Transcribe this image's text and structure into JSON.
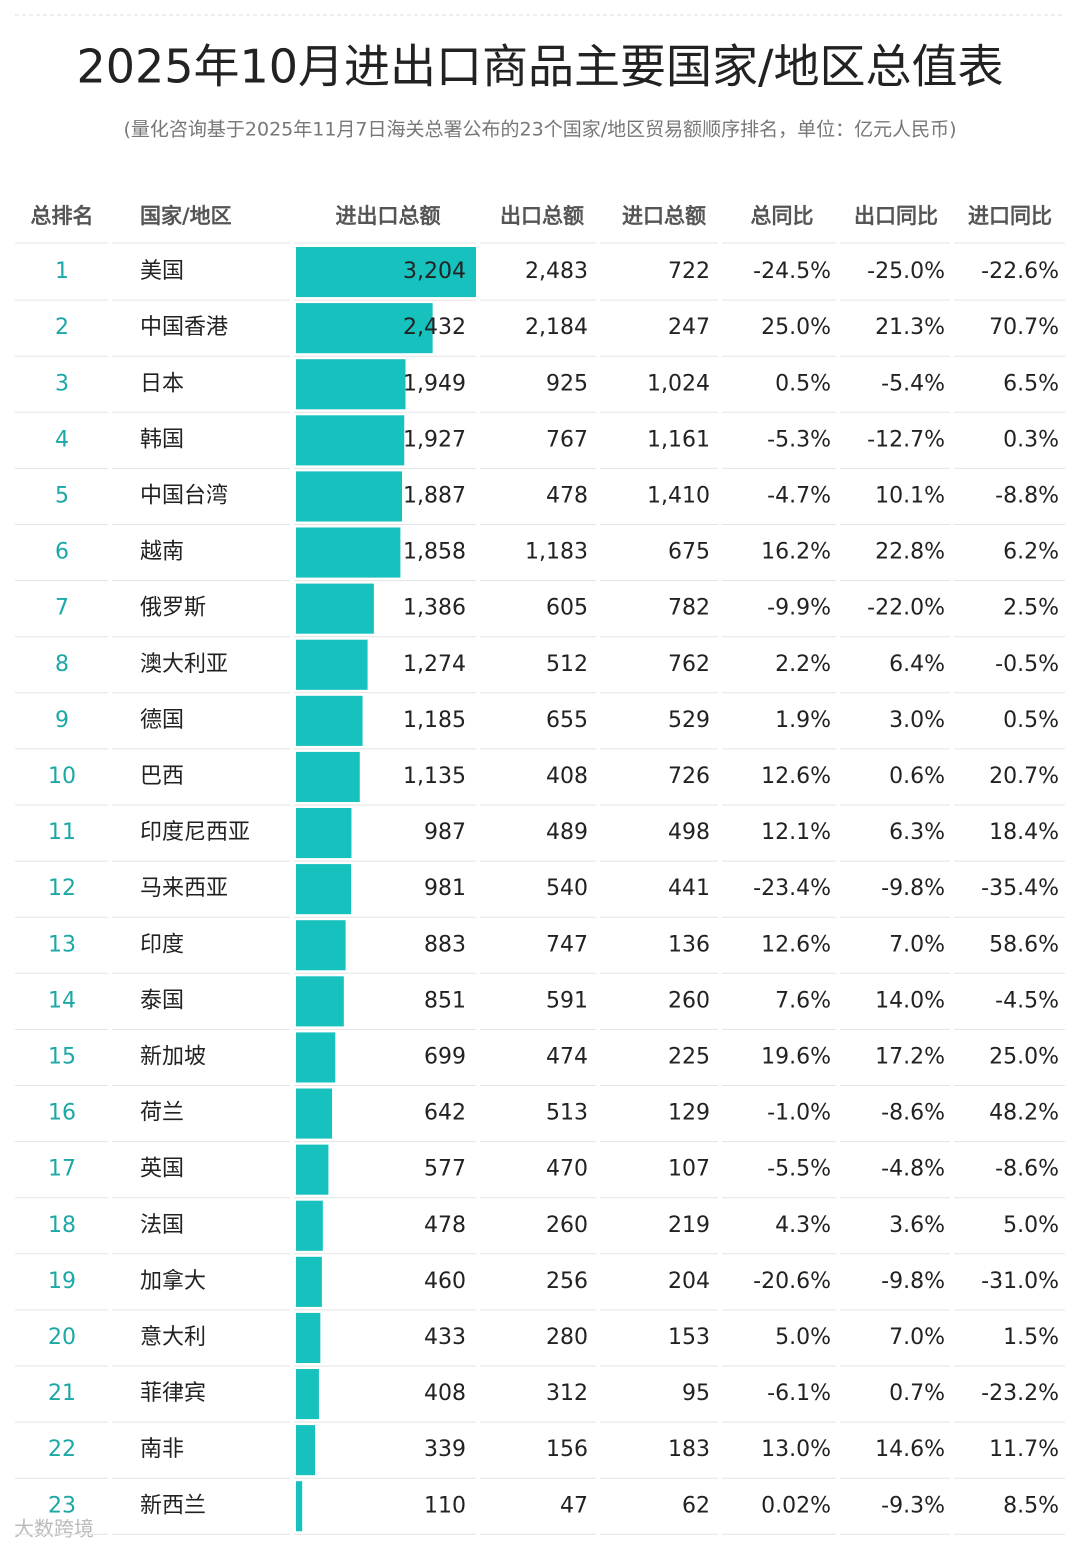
{
  "header": {
    "title": "2025年10月进出口商品主要国家/地区总值表",
    "subtitle": "(量化咨询基于2025年11月7日海关总署公布的23个国家/地区贸易额顺序排名，单位：亿元人民币)"
  },
  "table": {
    "columns": [
      "总排名",
      "国家/地区",
      "进出口总额",
      "出口总额",
      "进口总额",
      "总同比",
      "出口同比",
      "进口同比"
    ],
    "rows": [
      [
        "1",
        "美国",
        "3,204",
        "2,483",
        "722",
        "-24.5%",
        "-25.0%",
        "-22.6%"
      ],
      [
        "2",
        "中国香港",
        "2,432",
        "2,184",
        "247",
        "25.0%",
        "21.3%",
        "70.7%"
      ],
      [
        "3",
        "日本",
        "1,949",
        "925",
        "1,024",
        "0.5%",
        "-5.4%",
        "6.5%"
      ],
      [
        "4",
        "韩国",
        "1,927",
        "767",
        "1,161",
        "-5.3%",
        "-12.7%",
        "0.3%"
      ],
      [
        "5",
        "中国台湾",
        "1,887",
        "478",
        "1,410",
        "-4.7%",
        "10.1%",
        "-8.8%"
      ],
      [
        "6",
        "越南",
        "1,858",
        "1,183",
        "675",
        "16.2%",
        "22.8%",
        "6.2%"
      ],
      [
        "7",
        "俄罗斯",
        "1,386",
        "605",
        "782",
        "-9.9%",
        "-22.0%",
        "2.5%"
      ],
      [
        "8",
        "澳大利亚",
        "1,274",
        "512",
        "762",
        "2.2%",
        "6.4%",
        "-0.5%"
      ],
      [
        "9",
        "德国",
        "1,185",
        "655",
        "529",
        "1.9%",
        "3.0%",
        "0.5%"
      ],
      [
        "10",
        "巴西",
        "1,135",
        "408",
        "726",
        "12.6%",
        "0.6%",
        "20.7%"
      ],
      [
        "11",
        "印度尼西亚",
        "987",
        "489",
        "498",
        "12.1%",
        "6.3%",
        "18.4%"
      ],
      [
        "12",
        "马来西亚",
        "981",
        "540",
        "441",
        "-23.4%",
        "-9.8%",
        "-35.4%"
      ],
      [
        "13",
        "印度",
        "883",
        "747",
        "136",
        "12.6%",
        "7.0%",
        "58.6%"
      ],
      [
        "14",
        "泰国",
        "851",
        "591",
        "260",
        "7.6%",
        "14.0%",
        "-4.5%"
      ],
      [
        "15",
        "新加坡",
        "699",
        "474",
        "225",
        "19.6%",
        "17.2%",
        "25.0%"
      ],
      [
        "16",
        "荷兰",
        "642",
        "513",
        "129",
        "-1.0%",
        "-8.6%",
        "48.2%"
      ],
      [
        "17",
        "英国",
        "577",
        "470",
        "107",
        "-5.5%",
        "-4.8%",
        "-8.6%"
      ],
      [
        "18",
        "法国",
        "478",
        "260",
        "219",
        "4.3%",
        "3.6%",
        "5.0%"
      ],
      [
        "19",
        "加拿大",
        "460",
        "256",
        "204",
        "-20.6%",
        "-9.8%",
        "-31.0%"
      ],
      [
        "20",
        "意大利",
        "433",
        "280",
        "153",
        "5.0%",
        "7.0%",
        "1.5%"
      ],
      [
        "21",
        "菲律宾",
        "408",
        "312",
        "95",
        "-6.1%",
        "0.7%",
        "-23.2%"
      ],
      [
        "22",
        "南非",
        "339",
        "156",
        "183",
        "13.0%",
        "14.6%",
        "11.7%"
      ],
      [
        "23",
        "新西兰",
        "110",
        "47",
        "62",
        "0.02%",
        "-9.3%",
        "8.5%"
      ]
    ]
  },
  "watermark": "大数跨境"
}
